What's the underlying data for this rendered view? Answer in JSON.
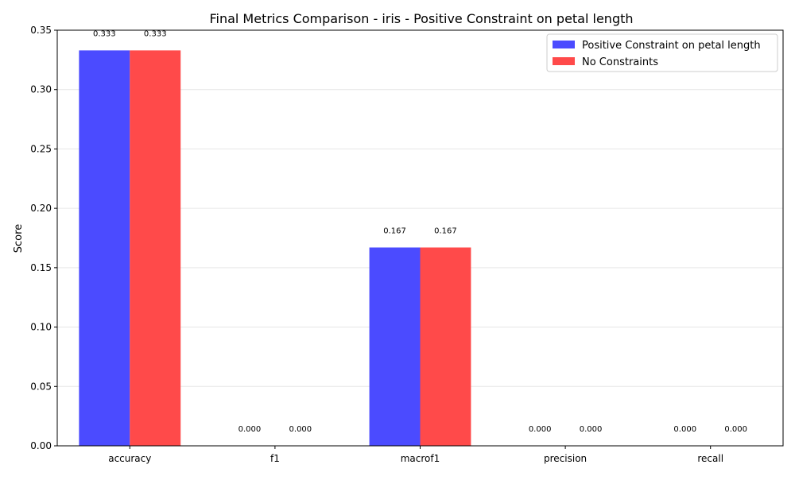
{
  "chart_data": {
    "type": "bar",
    "title": "Final Metrics Comparison - iris - Positive Constraint on petal length",
    "xlabel": "",
    "ylabel": "Score",
    "categories": [
      "accuracy",
      "f1",
      "macrof1",
      "precision",
      "recall"
    ],
    "series": [
      {
        "name": "Positive Constraint on petal length",
        "values": [
          0.333,
          0.0,
          0.167,
          0.0,
          0.0
        ],
        "color": "#4b4bff"
      },
      {
        "name": "No Constraints",
        "values": [
          0.333,
          0.0,
          0.167,
          0.0,
          0.0
        ],
        "color": "#ff4a4a"
      }
    ],
    "value_labels": [
      [
        "0.333",
        "0.000",
        "0.167",
        "0.000",
        "0.000"
      ],
      [
        "0.333",
        "0.000",
        "0.167",
        "0.000",
        "0.000"
      ]
    ],
    "ylim": [
      0,
      0.35
    ],
    "yticks": [
      "0.00",
      "0.05",
      "0.10",
      "0.15",
      "0.20",
      "0.25",
      "0.30",
      "0.35"
    ],
    "grid": "horizontal",
    "legend_position": "top-right"
  }
}
